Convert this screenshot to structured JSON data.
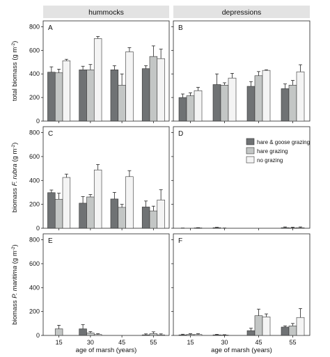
{
  "colors": {
    "hare & goose grazing": "#6f7274",
    "hare grazing": "#c3c6c5",
    "no grazing": "#f4f4f4",
    "strip": "#e3e3e3",
    "error_bar": "#222222"
  },
  "strips": [
    "hummocks",
    "depressions"
  ],
  "ylabels": [
    {
      "pre": "total biomass (g m",
      "sup": "-2",
      "post": ")",
      "italic": ""
    },
    {
      "pre": "biomass ",
      "italic": "F. rubra",
      "post2": " (g m",
      "sup": "-2",
      "post": ")"
    },
    {
      "pre": "biomass ",
      "italic": "P. maritima",
      "post2": " (g m",
      "sup": "-2",
      "post": ")"
    }
  ],
  "xlabel": "age of marsh (years)",
  "legend": [
    "hare & goose grazing",
    "hare grazing",
    "no grazing"
  ],
  "chart_data": [
    {
      "type": "bar",
      "panel": "A",
      "strip": "hummocks",
      "categories": [
        "15",
        "30",
        "45",
        "55"
      ],
      "ylim": [
        0,
        850
      ],
      "yticks": [
        0,
        200,
        400,
        600,
        800
      ],
      "series": [
        {
          "name": "hare & goose grazing",
          "values": [
            415,
            435,
            435,
            445
          ],
          "errors": [
            45,
            30,
            35,
            25
          ]
        },
        {
          "name": "hare grazing",
          "values": [
            410,
            435,
            305,
            548
          ],
          "errors": [
            30,
            45,
            95,
            90
          ]
        },
        {
          "name": "no grazing",
          "values": [
            512,
            700,
            588,
            530
          ],
          "errors": [
            12,
            18,
            35,
            80
          ]
        }
      ]
    },
    {
      "type": "bar",
      "panel": "B",
      "strip": "depressions",
      "categories": [
        "15",
        "30",
        "45",
        "55"
      ],
      "ylim": [
        0,
        850
      ],
      "yticks": [
        0,
        200,
        400,
        600,
        800
      ],
      "series": [
        {
          "name": "hare & goose grazing",
          "values": [
            200,
            310,
            295,
            275
          ],
          "errors": [
            30,
            90,
            40,
            40
          ]
        },
        {
          "name": "hare grazing",
          "values": [
            215,
            305,
            385,
            305
          ],
          "errors": [
            25,
            20,
            35,
            40
          ]
        },
        {
          "name": "no grazing",
          "values": [
            258,
            365,
            430,
            418
          ],
          "errors": [
            28,
            40,
            5,
            60
          ]
        }
      ]
    },
    {
      "type": "bar",
      "panel": "C",
      "strip": "hummocks",
      "categories": [
        "15",
        "30",
        "45",
        "55"
      ],
      "ylim": [
        0,
        850
      ],
      "yticks": [
        0,
        200,
        400,
        600,
        800
      ],
      "series": [
        {
          "name": "hare & goose grazing",
          "values": [
            298,
            210,
            245,
            178
          ],
          "errors": [
            22,
            55,
            55,
            50
          ]
        },
        {
          "name": "hare grazing",
          "values": [
            243,
            262,
            175,
            145
          ],
          "errors": [
            50,
            20,
            25,
            40
          ]
        },
        {
          "name": "no grazing",
          "values": [
            425,
            488,
            432,
            237
          ],
          "errors": [
            28,
            45,
            50,
            85
          ]
        }
      ]
    },
    {
      "type": "bar",
      "panel": "D",
      "strip": "depressions",
      "categories": [
        "15",
        "30",
        "45",
        "55"
      ],
      "ylim": [
        0,
        850
      ],
      "yticks": [
        0,
        200,
        400,
        600,
        800
      ],
      "series": [
        {
          "name": "hare & goose grazing",
          "values": [
            0,
            5,
            0,
            5
          ],
          "errors": [
            2,
            3,
            0,
            6
          ]
        },
        {
          "name": "hare grazing",
          "values": [
            0,
            0,
            0,
            3
          ],
          "errors": [
            0,
            2,
            0,
            6
          ]
        },
        {
          "name": "no grazing",
          "values": [
            3,
            0,
            0,
            5
          ],
          "errors": [
            2,
            0,
            0,
            6
          ]
        }
      ]
    },
    {
      "type": "bar",
      "panel": "E",
      "strip": "hummocks",
      "categories": [
        "15",
        "30",
        "45",
        "55"
      ],
      "ylim": [
        0,
        850
      ],
      "yticks": [
        0,
        200,
        400,
        600,
        800
      ],
      "series": [
        {
          "name": "hare & goose grazing",
          "values": [
            0,
            55,
            0,
            5
          ],
          "errors": [
            0,
            35,
            0,
            8
          ]
        },
        {
          "name": "hare grazing",
          "values": [
            55,
            20,
            0,
            15
          ],
          "errors": [
            30,
            12,
            0,
            15
          ]
        },
        {
          "name": "no grazing",
          "values": [
            0,
            8,
            0,
            5
          ],
          "errors": [
            0,
            6,
            0,
            8
          ]
        }
      ]
    },
    {
      "type": "bar",
      "panel": "F",
      "strip": "depressions",
      "categories": [
        "15",
        "30",
        "45",
        "55"
      ],
      "ylim": [
        0,
        850
      ],
      "yticks": [
        0,
        200,
        400,
        600,
        800
      ],
      "series": [
        {
          "name": "hare & goose grazing",
          "values": [
            5,
            5,
            40,
            70
          ],
          "errors": [
            5,
            4,
            20,
            10
          ]
        },
        {
          "name": "hare grazing",
          "values": [
            8,
            3,
            165,
            80
          ],
          "errors": [
            6,
            3,
            55,
            20
          ]
        },
        {
          "name": "no grazing",
          "values": [
            8,
            0,
            155,
            150
          ],
          "errors": [
            6,
            0,
            25,
            75
          ]
        }
      ]
    }
  ]
}
